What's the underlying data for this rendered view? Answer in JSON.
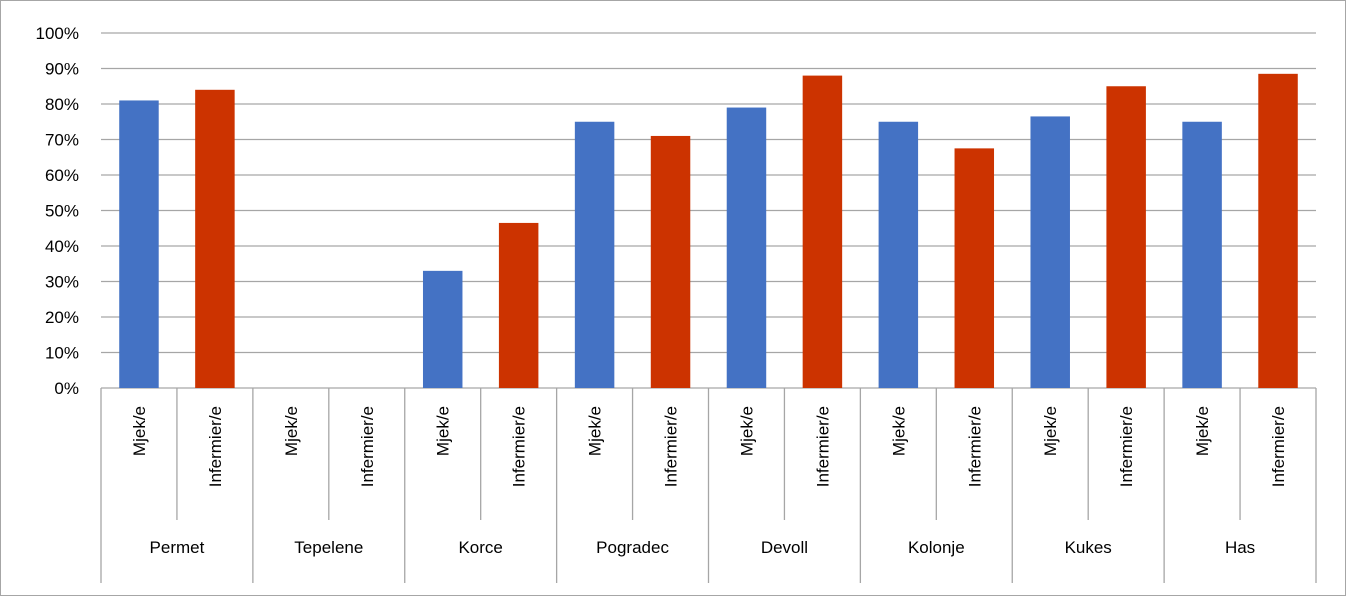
{
  "chart_data": {
    "type": "bar",
    "groups": [
      "Permet",
      "Tepelene",
      "Korce",
      "Pogradec",
      "Devoll",
      "Kolonje",
      "Kukes",
      "Has"
    ],
    "subcategories": [
      "Mjek/e",
      "Infermier/e"
    ],
    "values": [
      [
        81,
        84
      ],
      [
        null,
        null
      ],
      [
        33,
        46.5
      ],
      [
        75,
        71
      ],
      [
        79,
        88
      ],
      [
        75,
        67.5
      ],
      [
        76.5,
        85
      ],
      [
        75,
        88.5
      ]
    ],
    "colors": {
      "Mjek/e": "#4472c4",
      "Infermier/e": "#cc3300"
    },
    "ylim": [
      0,
      100
    ],
    "yticks": [
      "0%",
      "10%",
      "20%",
      "30%",
      "40%",
      "50%",
      "60%",
      "70%",
      "80%",
      "90%",
      "100%"
    ],
    "grid": true,
    "legend": "none",
    "title": "",
    "xlabel": "",
    "ylabel": ""
  }
}
